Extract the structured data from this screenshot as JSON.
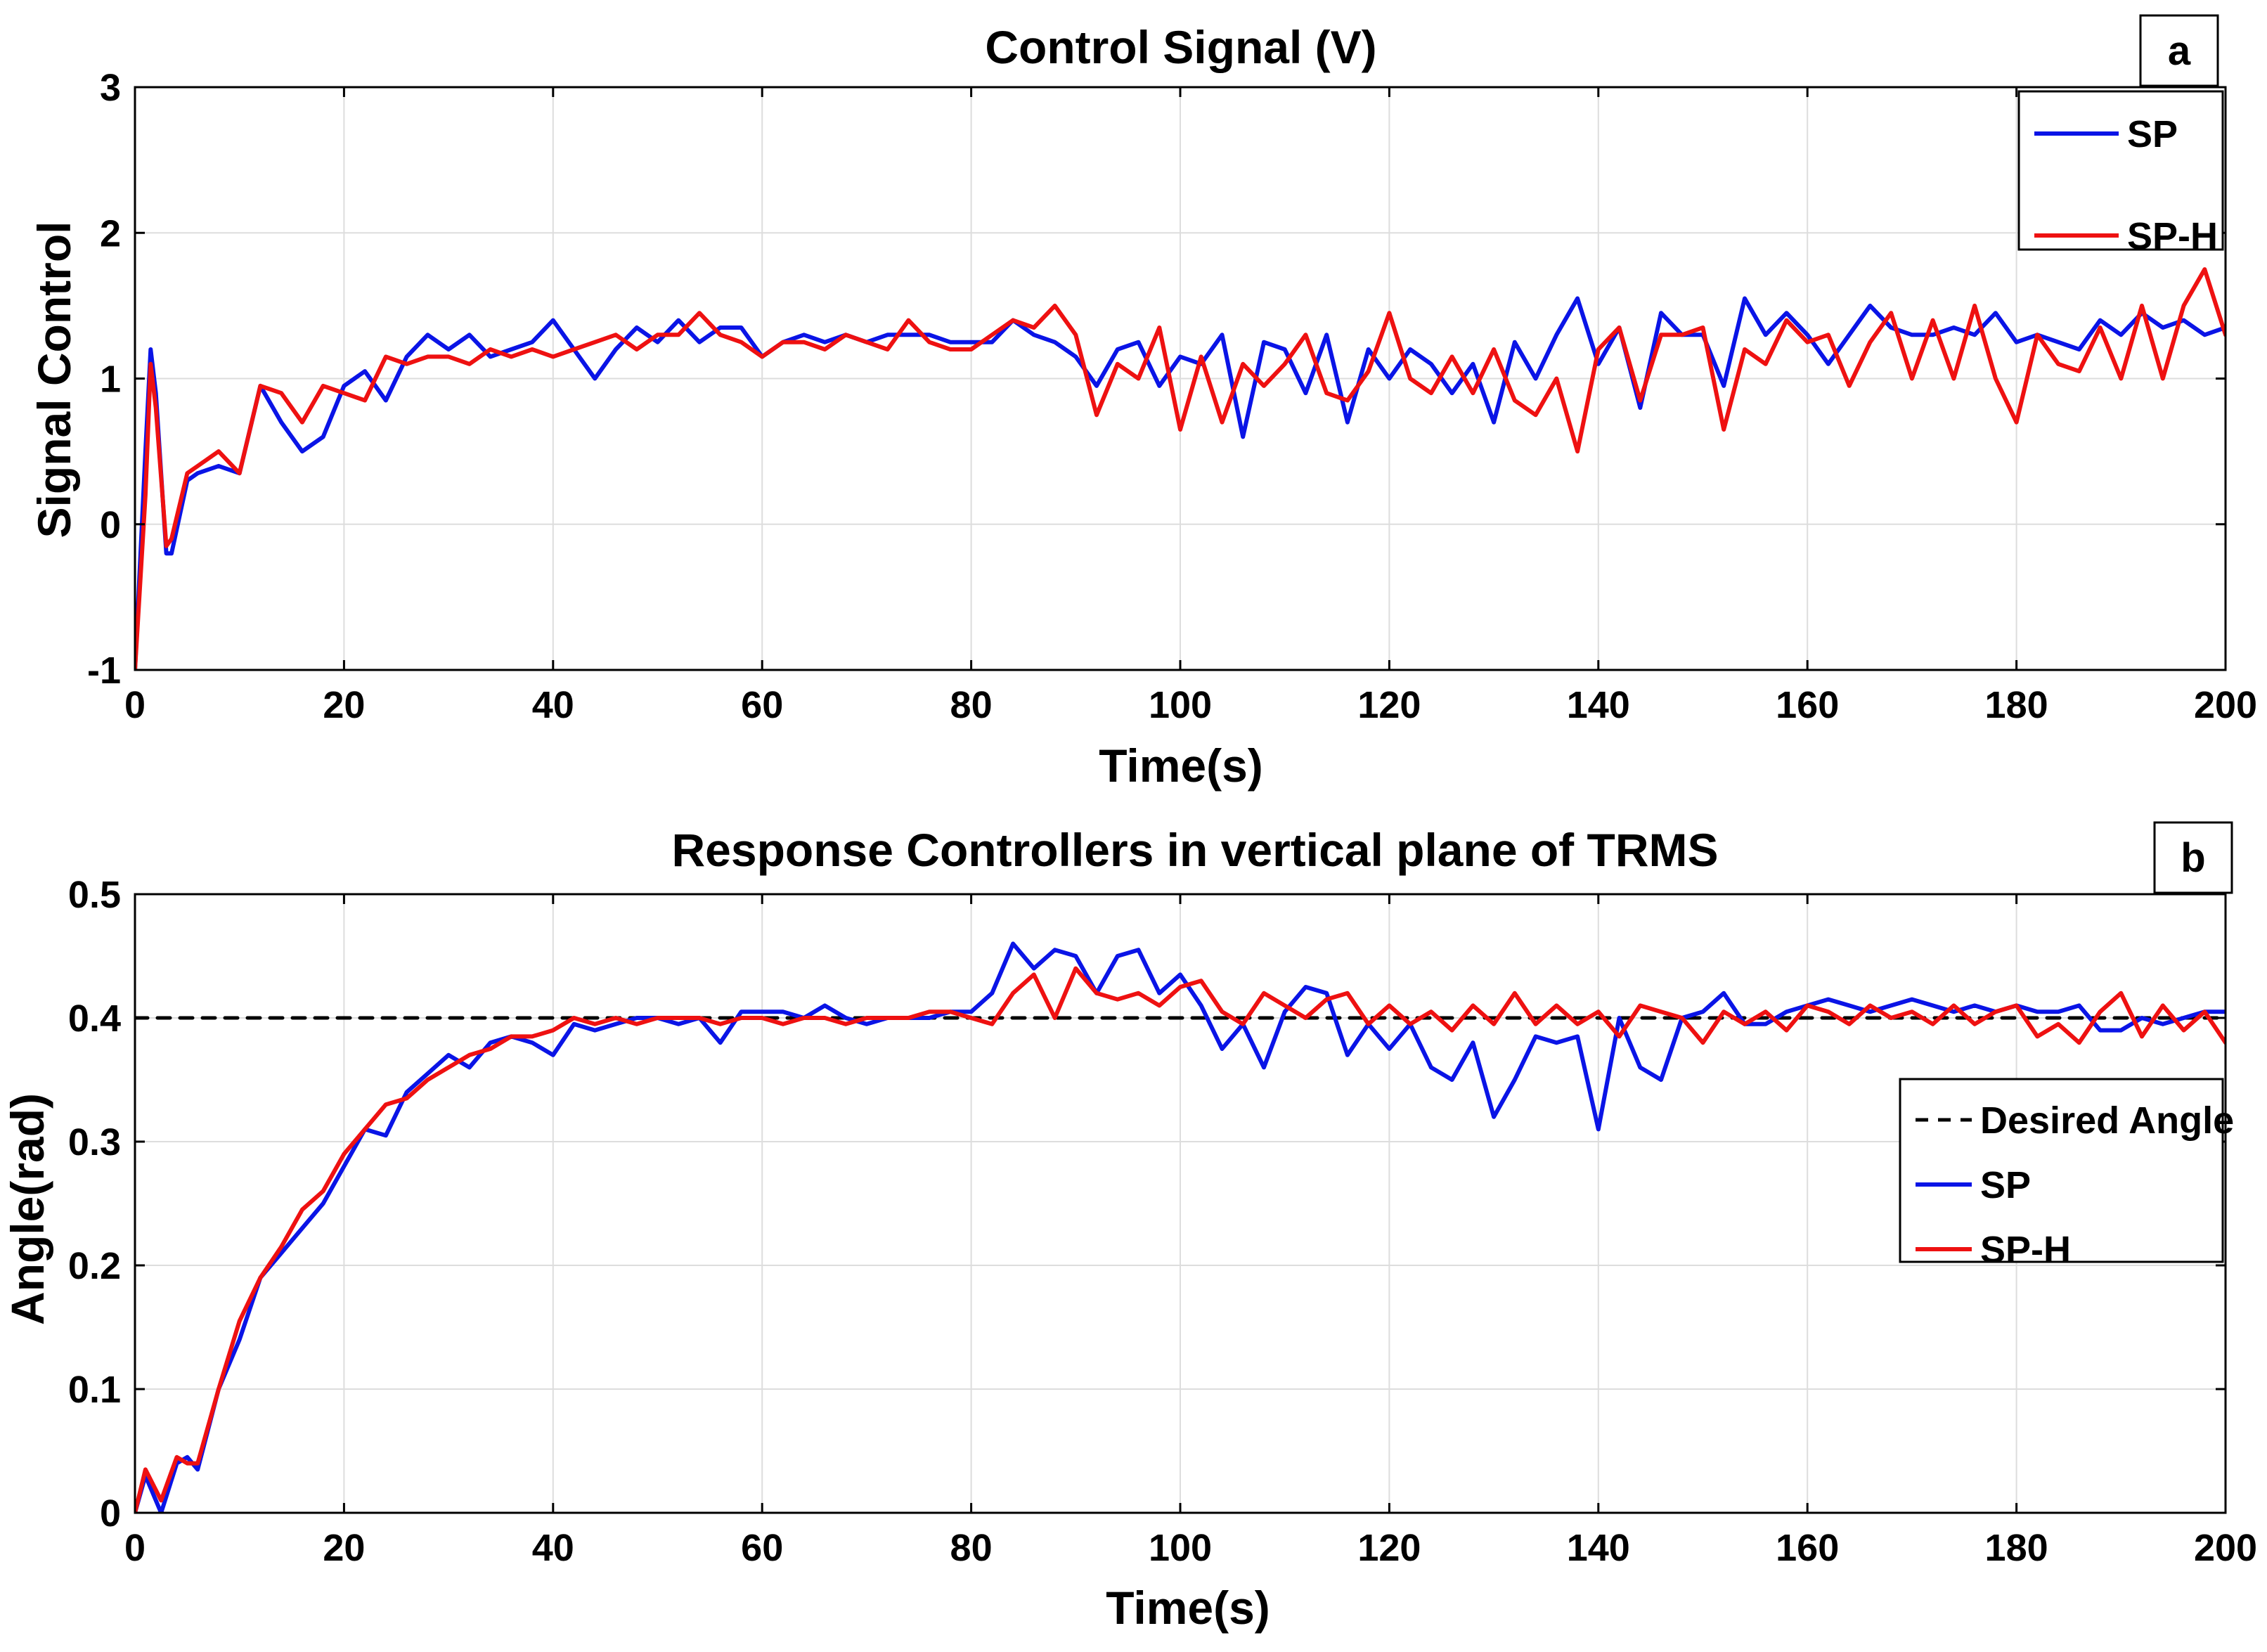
{
  "colors": {
    "sp": "#0a14e6",
    "sph": "#ee1111",
    "desired": "#000000",
    "grid": "#dddddd"
  },
  "chart_data": [
    {
      "type": "line",
      "panel": "a",
      "title": "Control Signal (V)",
      "xlabel": "Time(s)",
      "ylabel": "Signal Control",
      "xlim": [
        0,
        200
      ],
      "ylim": [
        -1,
        3
      ],
      "xticks": [
        0,
        20,
        40,
        60,
        80,
        100,
        120,
        140,
        160,
        180,
        200
      ],
      "yticks": [
        -1,
        0,
        1,
        2,
        3
      ],
      "legend": "top-right",
      "grid": true,
      "series": [
        {
          "name": "SP",
          "key": "sp",
          "x": [
            0,
            1,
            1.5,
            2,
            3,
            3.5,
            5,
            6,
            8,
            10,
            12,
            14,
            16,
            18,
            20,
            22,
            24,
            26,
            28,
            30,
            32,
            34,
            36,
            38,
            40,
            42,
            44,
            46,
            48,
            50,
            52,
            54,
            56,
            58,
            60,
            62,
            64,
            66,
            68,
            70,
            72,
            74,
            76,
            78,
            80,
            82,
            84,
            86,
            88,
            90,
            92,
            94,
            96,
            98,
            100,
            102,
            104,
            106,
            108,
            110,
            112,
            114,
            116,
            118,
            120,
            122,
            124,
            126,
            128,
            130,
            132,
            134,
            136,
            138,
            140,
            142,
            144,
            146,
            148,
            150,
            152,
            154,
            156,
            158,
            160,
            162,
            164,
            166,
            168,
            170,
            172,
            174,
            176,
            178,
            180,
            182,
            184,
            186,
            188,
            190,
            192,
            194,
            196,
            198,
            200
          ],
          "y": [
            -1,
            0.5,
            1.2,
            0.9,
            -0.2,
            -0.2,
            0.3,
            0.35,
            0.4,
            0.35,
            0.95,
            0.7,
            0.5,
            0.6,
            0.95,
            1.05,
            0.85,
            1.15,
            1.3,
            1.2,
            1.3,
            1.15,
            1.2,
            1.25,
            1.4,
            1.2,
            1.0,
            1.2,
            1.35,
            1.25,
            1.4,
            1.25,
            1.35,
            1.35,
            1.15,
            1.25,
            1.3,
            1.25,
            1.3,
            1.25,
            1.3,
            1.3,
            1.3,
            1.25,
            1.25,
            1.25,
            1.4,
            1.3,
            1.25,
            1.15,
            0.95,
            1.2,
            1.25,
            0.95,
            1.15,
            1.1,
            1.3,
            0.6,
            1.25,
            1.2,
            0.9,
            1.3,
            0.7,
            1.2,
            1.0,
            1.2,
            1.1,
            0.9,
            1.1,
            0.7,
            1.25,
            1.0,
            1.3,
            1.55,
            1.1,
            1.35,
            0.8,
            1.45,
            1.3,
            1.3,
            0.95,
            1.55,
            1.3,
            1.45,
            1.3,
            1.1,
            1.3,
            1.5,
            1.35,
            1.3,
            1.3,
            1.35,
            1.3,
            1.45,
            1.25,
            1.3,
            1.25,
            1.2,
            1.4,
            1.3,
            1.45,
            1.35,
            1.4,
            1.3,
            1.35
          ]
        },
        {
          "name": "SP-H",
          "key": "sph",
          "x": [
            0,
            1,
            1.5,
            2,
            3,
            3.5,
            5,
            6,
            8,
            10,
            12,
            14,
            16,
            18,
            20,
            22,
            24,
            26,
            28,
            30,
            32,
            34,
            36,
            38,
            40,
            42,
            44,
            46,
            48,
            50,
            52,
            54,
            56,
            58,
            60,
            62,
            64,
            66,
            68,
            70,
            72,
            74,
            76,
            78,
            80,
            82,
            84,
            86,
            88,
            90,
            92,
            94,
            96,
            98,
            100,
            102,
            104,
            106,
            108,
            110,
            112,
            114,
            116,
            118,
            120,
            122,
            124,
            126,
            128,
            130,
            132,
            134,
            136,
            138,
            140,
            142,
            144,
            146,
            148,
            150,
            152,
            154,
            156,
            158,
            160,
            162,
            164,
            166,
            168,
            170,
            172,
            174,
            176,
            178,
            180,
            182,
            184,
            186,
            188,
            190,
            192,
            194,
            196,
            198,
            200
          ],
          "y": [
            -1,
            0.2,
            1.1,
            0.8,
            -0.15,
            -0.1,
            0.35,
            0.4,
            0.5,
            0.35,
            0.95,
            0.9,
            0.7,
            0.95,
            0.9,
            0.85,
            1.15,
            1.1,
            1.15,
            1.15,
            1.1,
            1.2,
            1.15,
            1.2,
            1.15,
            1.2,
            1.25,
            1.3,
            1.2,
            1.3,
            1.3,
            1.45,
            1.3,
            1.25,
            1.15,
            1.25,
            1.25,
            1.2,
            1.3,
            1.25,
            1.2,
            1.4,
            1.25,
            1.2,
            1.2,
            1.3,
            1.4,
            1.35,
            1.5,
            1.3,
            0.75,
            1.1,
            1.0,
            1.35,
            0.65,
            1.15,
            0.7,
            1.1,
            0.95,
            1.1,
            1.3,
            0.9,
            0.85,
            1.05,
            1.45,
            1.0,
            0.9,
            1.15,
            0.9,
            1.2,
            0.85,
            0.75,
            1.0,
            0.5,
            1.2,
            1.35,
            0.85,
            1.3,
            1.3,
            1.35,
            0.65,
            1.2,
            1.1,
            1.4,
            1.25,
            1.3,
            0.95,
            1.25,
            1.45,
            1.0,
            1.4,
            1.0,
            1.5,
            1.0,
            0.7,
            1.3,
            1.1,
            1.05,
            1.35,
            1.0,
            1.5,
            1.0,
            1.5,
            1.75,
            1.3
          ]
        }
      ]
    },
    {
      "type": "line",
      "panel": "b",
      "title": "Response Controllers in  vertical  plane of TRMS",
      "xlabel": "Time(s)",
      "ylabel": "Angle(rad)",
      "xlim": [
        0,
        200
      ],
      "ylim": [
        0,
        0.5
      ],
      "xticks": [
        0,
        20,
        40,
        60,
        80,
        100,
        120,
        140,
        160,
        180,
        200
      ],
      "yticks": [
        0,
        0.1,
        0.2,
        0.3,
        0.4,
        0.5
      ],
      "legend": "right",
      "grid": true,
      "series": [
        {
          "name": "Desired Angle",
          "key": "desired",
          "dashed": true,
          "x": [
            0,
            200
          ],
          "y": [
            0.4,
            0.4
          ]
        },
        {
          "name": "SP",
          "key": "sp",
          "x": [
            0,
            1,
            2.5,
            4,
            5,
            6,
            8,
            10,
            12,
            14,
            16,
            18,
            20,
            22,
            24,
            26,
            28,
            30,
            32,
            34,
            36,
            38,
            40,
            42,
            44,
            46,
            48,
            50,
            52,
            54,
            56,
            58,
            60,
            62,
            64,
            66,
            68,
            70,
            72,
            74,
            76,
            78,
            80,
            82,
            84,
            86,
            88,
            90,
            92,
            94,
            96,
            98,
            100,
            102,
            104,
            106,
            108,
            110,
            112,
            114,
            116,
            118,
            120,
            122,
            124,
            126,
            128,
            130,
            132,
            134,
            136,
            138,
            140,
            142,
            144,
            146,
            148,
            150,
            152,
            154,
            156,
            158,
            160,
            162,
            164,
            166,
            168,
            170,
            172,
            174,
            176,
            178,
            180,
            182,
            184,
            186,
            188,
            190,
            192,
            194,
            196,
            198,
            200
          ],
          "y": [
            0.0,
            0.03,
            0.0,
            0.04,
            0.045,
            0.035,
            0.1,
            0.14,
            0.19,
            0.21,
            0.23,
            0.25,
            0.28,
            0.31,
            0.305,
            0.34,
            0.355,
            0.37,
            0.36,
            0.38,
            0.385,
            0.38,
            0.37,
            0.395,
            0.39,
            0.395,
            0.4,
            0.4,
            0.395,
            0.4,
            0.38,
            0.405,
            0.405,
            0.405,
            0.4,
            0.41,
            0.4,
            0.395,
            0.4,
            0.4,
            0.4,
            0.405,
            0.405,
            0.42,
            0.46,
            0.44,
            0.455,
            0.45,
            0.42,
            0.45,
            0.455,
            0.42,
            0.435,
            0.41,
            0.375,
            0.395,
            0.36,
            0.405,
            0.425,
            0.42,
            0.37,
            0.395,
            0.375,
            0.395,
            0.36,
            0.35,
            0.38,
            0.32,
            0.35,
            0.385,
            0.38,
            0.385,
            0.31,
            0.4,
            0.36,
            0.35,
            0.4,
            0.405,
            0.42,
            0.395,
            0.395,
            0.405,
            0.41,
            0.415,
            0.41,
            0.405,
            0.41,
            0.415,
            0.41,
            0.405,
            0.41,
            0.405,
            0.41,
            0.405,
            0.405,
            0.41,
            0.39,
            0.39,
            0.4,
            0.395,
            0.4,
            0.405,
            0.405
          ]
        },
        {
          "name": "SP-H",
          "key": "sph",
          "x": [
            0,
            1,
            2.5,
            4,
            5,
            6,
            8,
            10,
            12,
            14,
            16,
            18,
            20,
            22,
            24,
            26,
            28,
            30,
            32,
            34,
            36,
            38,
            40,
            42,
            44,
            46,
            48,
            50,
            52,
            54,
            56,
            58,
            60,
            62,
            64,
            66,
            68,
            70,
            72,
            74,
            76,
            78,
            80,
            82,
            84,
            86,
            88,
            90,
            92,
            94,
            96,
            98,
            100,
            102,
            104,
            106,
            108,
            110,
            112,
            114,
            116,
            118,
            120,
            122,
            124,
            126,
            128,
            130,
            132,
            134,
            136,
            138,
            140,
            142,
            144,
            146,
            148,
            150,
            152,
            154,
            156,
            158,
            160,
            162,
            164,
            166,
            168,
            170,
            172,
            174,
            176,
            178,
            180,
            182,
            184,
            186,
            188,
            190,
            192,
            194,
            196,
            198,
            200
          ],
          "y": [
            0.0,
            0.035,
            0.01,
            0.045,
            0.04,
            0.04,
            0.1,
            0.155,
            0.19,
            0.215,
            0.245,
            0.26,
            0.29,
            0.31,
            0.33,
            0.335,
            0.35,
            0.36,
            0.37,
            0.375,
            0.385,
            0.385,
            0.39,
            0.4,
            0.395,
            0.4,
            0.395,
            0.4,
            0.4,
            0.4,
            0.395,
            0.4,
            0.4,
            0.395,
            0.4,
            0.4,
            0.395,
            0.4,
            0.4,
            0.4,
            0.405,
            0.405,
            0.4,
            0.395,
            0.42,
            0.435,
            0.4,
            0.44,
            0.42,
            0.415,
            0.42,
            0.41,
            0.425,
            0.43,
            0.405,
            0.395,
            0.42,
            0.41,
            0.4,
            0.415,
            0.42,
            0.395,
            0.41,
            0.395,
            0.405,
            0.39,
            0.41,
            0.395,
            0.42,
            0.395,
            0.41,
            0.395,
            0.405,
            0.385,
            0.41,
            0.405,
            0.4,
            0.38,
            0.405,
            0.395,
            0.405,
            0.39,
            0.41,
            0.405,
            0.395,
            0.41,
            0.4,
            0.405,
            0.395,
            0.41,
            0.395,
            0.405,
            0.41,
            0.385,
            0.395,
            0.38,
            0.405,
            0.42,
            0.385,
            0.41,
            0.39,
            0.405,
            0.38
          ]
        }
      ]
    }
  ]
}
